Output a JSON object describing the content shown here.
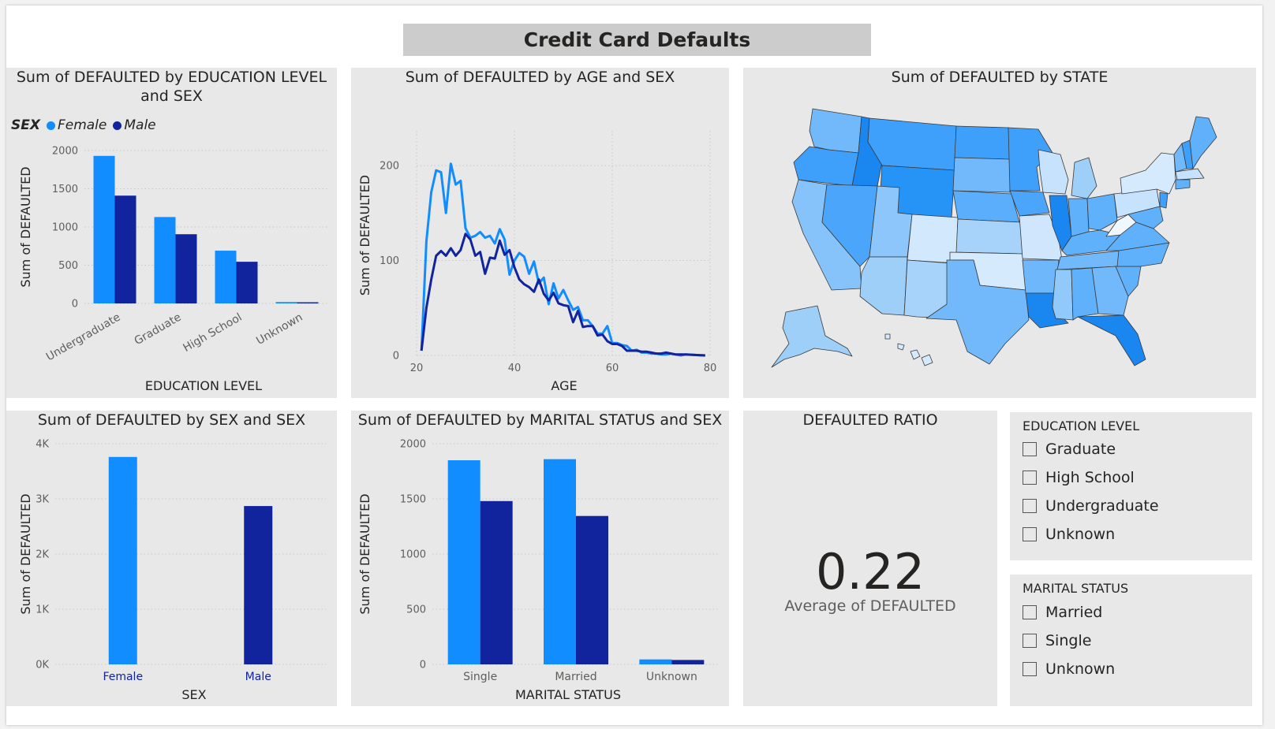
{
  "report_title": "Credit Card Defaults",
  "colors": {
    "female": "#118dff",
    "male": "#12239e",
    "grid": "#c8c8c8",
    "panel": "#e8e8e8"
  },
  "legend": {
    "title": "SEX",
    "items": [
      "Female",
      "Male"
    ]
  },
  "education_chart": {
    "title": "Sum of DEFAULTED by EDUCATION LEVEL and SEX",
    "xlabel": "EDUCATION LEVEL",
    "ylabel": "Sum of DEFAULTED"
  },
  "age_chart": {
    "title": "Sum of DEFAULTED by AGE and SEX",
    "xlabel": "AGE",
    "ylabel": "Sum of DEFAULTED"
  },
  "state_map": {
    "title": "Sum of DEFAULTED by STATE"
  },
  "sex_chart": {
    "title": "Sum of DEFAULTED by SEX and SEX",
    "xlabel": "SEX",
    "ylabel": "Sum of DEFAULTED"
  },
  "marital_chart": {
    "title": "Sum of DEFAULTED by MARITAL STATUS and SEX",
    "xlabel": "MARITAL STATUS",
    "ylabel": "Sum of DEFAULTED"
  },
  "kpi": {
    "title": "DEFAULTED RATIO",
    "value": "0.22",
    "label": "Average of DEFAULTED"
  },
  "education_slicer": {
    "title": "EDUCATION LEVEL",
    "options": [
      "Graduate",
      "High School",
      "Undergraduate",
      "Unknown"
    ]
  },
  "marital_slicer": {
    "title": "MARITAL STATUS",
    "options": [
      "Married",
      "Single",
      "Unknown"
    ]
  },
  "chart_data": [
    {
      "type": "bar",
      "title": "Sum of DEFAULTED by EDUCATION LEVEL and SEX",
      "categories": [
        "Undergraduate",
        "Graduate",
        "High School",
        "Unknown"
      ],
      "series": [
        {
          "name": "Female",
          "values": [
            1930,
            1130,
            690,
            18
          ]
        },
        {
          "name": "Male",
          "values": [
            1410,
            905,
            545,
            15
          ]
        }
      ],
      "ylim": [
        0,
        2000
      ],
      "yticks": [
        0,
        500,
        1000,
        1500,
        2000
      ],
      "ytick_labels": [
        "0",
        "500",
        "1000",
        "1500",
        "2000"
      ],
      "xlabel": "EDUCATION LEVEL",
      "ylabel": "Sum of DEFAULTED",
      "grid": true,
      "legend": "top-left"
    },
    {
      "type": "line",
      "title": "Sum of DEFAULTED by AGE and SEX",
      "xlim": [
        20,
        80
      ],
      "ylim": [
        0,
        220
      ],
      "xticks": [
        20,
        40,
        60,
        80
      ],
      "yticks": [
        0,
        100,
        200
      ],
      "xlabel": "AGE",
      "ylabel": "Sum of DEFAULTED",
      "grid": true,
      "series": [
        {
          "name": "Female",
          "x": [
            21,
            22,
            23,
            24,
            25,
            26,
            27,
            28,
            29,
            30,
            31,
            32,
            33,
            34,
            35,
            36,
            37,
            38,
            39,
            40,
            41,
            42,
            43,
            44,
            45,
            46,
            47,
            48,
            49,
            50,
            51,
            52,
            53,
            54,
            55,
            56,
            57,
            58,
            59,
            60,
            61,
            62,
            63,
            64,
            65,
            66,
            67,
            68,
            69,
            70,
            71,
            72,
            73,
            74,
            75,
            79
          ],
          "y": [
            5,
            120,
            172,
            195,
            193,
            150,
            202,
            180,
            184,
            134,
            124,
            126,
            130,
            124,
            126,
            118,
            133,
            122,
            85,
            100,
            108,
            104,
            86,
            99,
            76,
            82,
            54,
            76,
            60,
            69,
            58,
            48,
            51,
            37,
            37,
            31,
            23,
            23,
            31,
            13,
            13,
            11,
            10,
            5,
            6,
            3,
            3,
            2,
            2,
            1,
            1,
            2,
            1,
            0,
            1,
            0
          ]
        },
        {
          "name": "Male",
          "x": [
            21,
            22,
            23,
            24,
            25,
            26,
            27,
            28,
            29,
            30,
            31,
            32,
            33,
            34,
            35,
            36,
            37,
            38,
            39,
            40,
            41,
            42,
            43,
            44,
            45,
            46,
            47,
            48,
            49,
            50,
            51,
            52,
            53,
            54,
            55,
            56,
            57,
            58,
            59,
            60,
            61,
            62,
            63,
            64,
            65,
            66,
            67,
            68,
            69,
            70,
            71,
            72,
            73,
            74,
            75,
            79
          ],
          "y": [
            5,
            50,
            80,
            105,
            110,
            105,
            113,
            105,
            111,
            128,
            122,
            105,
            109,
            86,
            103,
            102,
            121,
            106,
            111,
            93,
            80,
            75,
            72,
            67,
            80,
            65,
            58,
            66,
            55,
            53,
            52,
            35,
            47,
            30,
            31,
            31,
            21,
            22,
            15,
            12,
            12,
            10,
            5,
            5,
            5,
            4,
            4,
            3,
            2,
            2,
            3,
            2,
            1,
            1,
            1,
            0
          ]
        }
      ]
    },
    {
      "type": "bar",
      "title": "Sum of DEFAULTED by SEX and SEX",
      "categories": [
        "Female",
        "Male"
      ],
      "series": [
        {
          "name": "Female",
          "values": [
            3760,
            null
          ]
        },
        {
          "name": "Male",
          "values": [
            null,
            2870
          ]
        }
      ],
      "ylim": [
        0,
        4000
      ],
      "yticks": [
        0,
        1000,
        2000,
        3000,
        4000
      ],
      "ytick_labels": [
        "0K",
        "1K",
        "2K",
        "3K",
        "4K"
      ],
      "xlabel": "SEX",
      "ylabel": "Sum of DEFAULTED",
      "grid": true
    },
    {
      "type": "bar",
      "title": "Sum of DEFAULTED by MARITAL STATUS and SEX",
      "categories": [
        "Single",
        "Married",
        "Unknown"
      ],
      "series": [
        {
          "name": "Female",
          "values": [
            1850,
            1860,
            45
          ]
        },
        {
          "name": "Male",
          "values": [
            1480,
            1345,
            40
          ]
        }
      ],
      "ylim": [
        0,
        2000
      ],
      "yticks": [
        0,
        500,
        1000,
        1500,
        2000
      ],
      "ytick_labels": [
        "0",
        "500",
        "1000",
        "1500",
        "2000"
      ],
      "xlabel": "MARITAL STATUS",
      "ylabel": "Sum of DEFAULTED",
      "grid": true
    }
  ]
}
